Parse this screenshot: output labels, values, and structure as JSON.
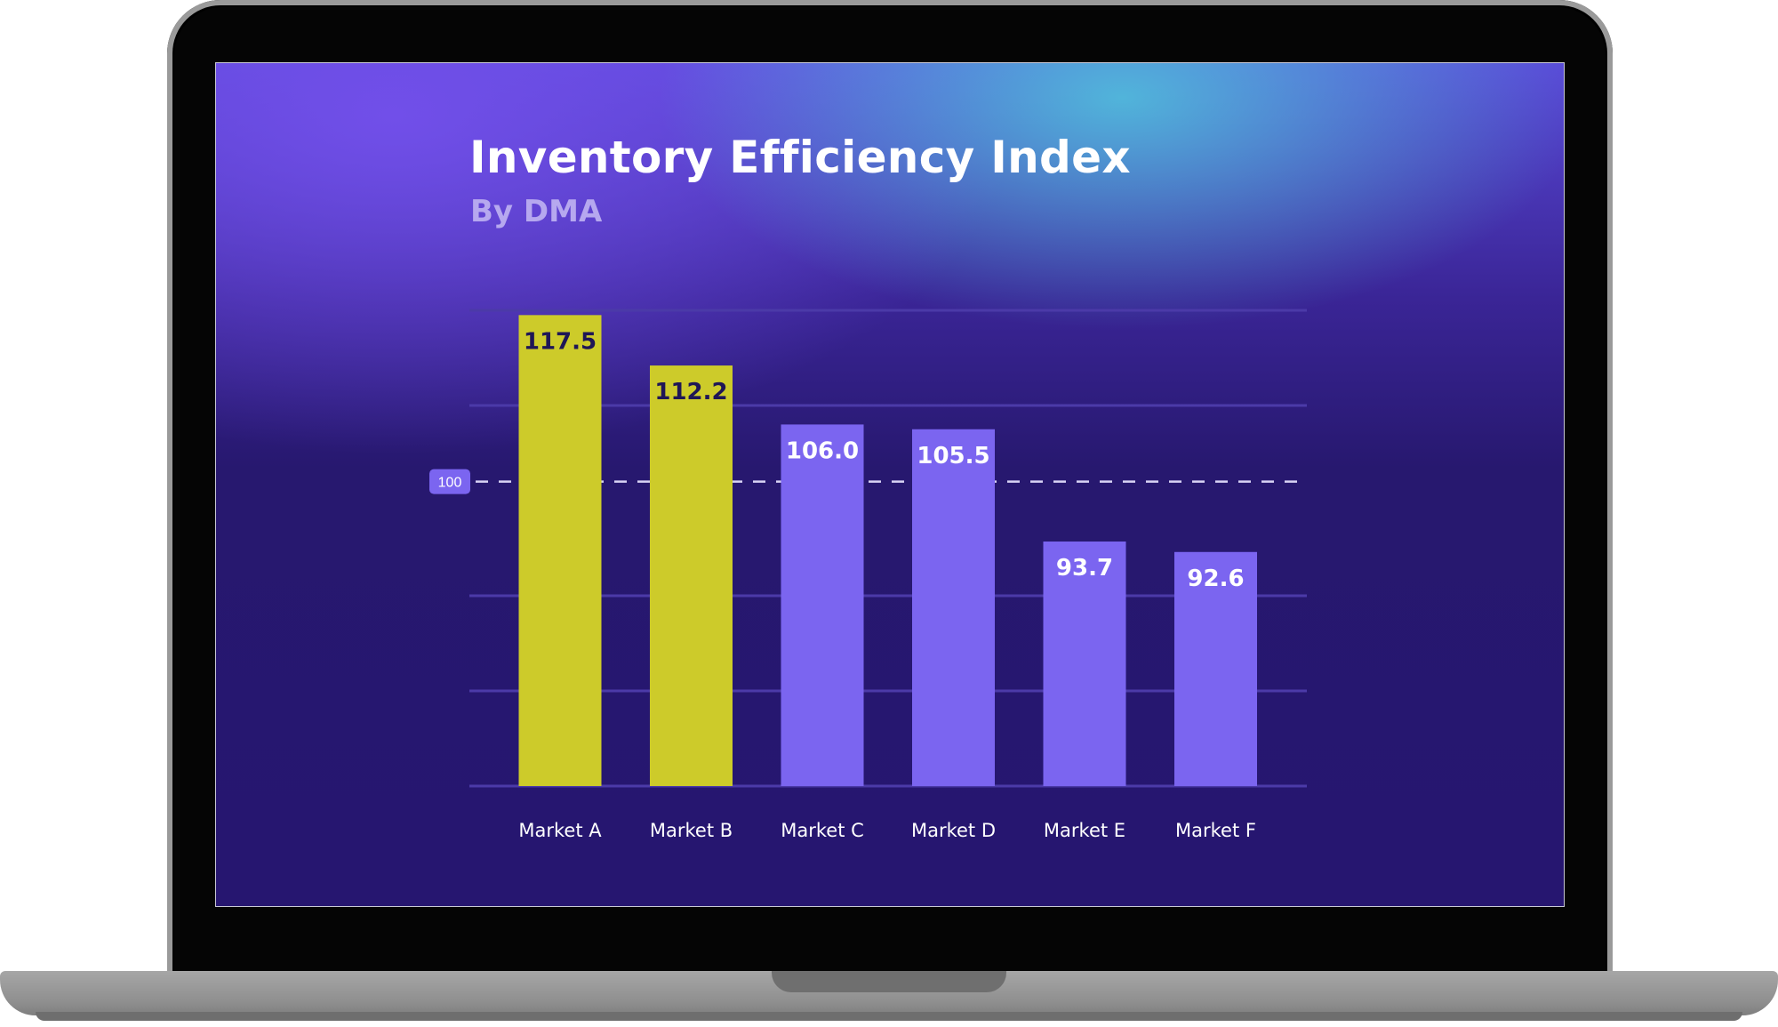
{
  "colors": {
    "highlight_bar": "#cdcb2a",
    "regular_bar": "#7b65f0",
    "gridline": "#4b3aa8",
    "reference_line": "#d9d4f5",
    "badge": "#7b65f0",
    "label_dark": "#1f1656",
    "label_light": "#ffffff",
    "axis_label": "#ffffff"
  },
  "chart_data": {
    "type": "bar",
    "title": "Inventory Efficiency Index",
    "subtitle": "By DMA",
    "xlabel": "",
    "ylabel": "",
    "categories": [
      "Market A",
      "Market B",
      "Market C",
      "Market D",
      "Market E",
      "Market F"
    ],
    "values": [
      117.5,
      112.2,
      106.0,
      105.5,
      93.7,
      92.6
    ],
    "value_labels": [
      "117.5",
      "112.2",
      "106.0",
      "105.5",
      "93.7",
      "92.6"
    ],
    "highlighted": [
      true,
      true,
      false,
      false,
      false,
      false
    ],
    "ylim": [
      68,
      118
    ],
    "gridlines": [
      68,
      78,
      88,
      108,
      118
    ],
    "reference_line": {
      "value": 100,
      "label": "100",
      "style": "dashed"
    },
    "grid": true,
    "legend": "none"
  }
}
